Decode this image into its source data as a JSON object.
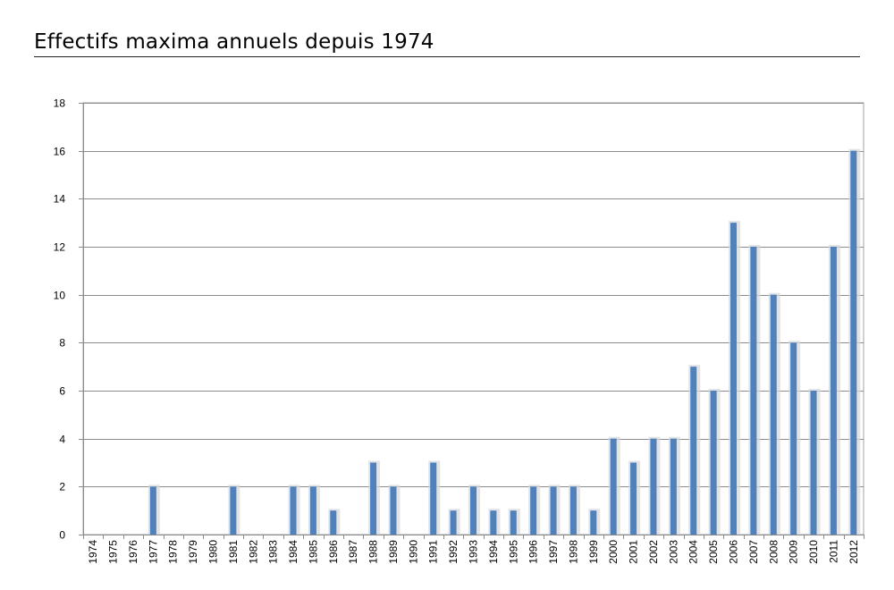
{
  "title": "Effectifs maxima annuels depuis 1974",
  "colors": {
    "bar": "#4F81BD",
    "bar_shadow": "#D4D7DC",
    "grid": "#8C8C8C",
    "axis": "#8C8C8C",
    "plot_border": "#A6A6A6"
  },
  "chart_data": {
    "type": "bar",
    "title": "",
    "xlabel": "",
    "ylabel": "",
    "ylim": [
      0,
      18
    ],
    "yticks": [
      0,
      2,
      4,
      6,
      8,
      10,
      12,
      14,
      16,
      18
    ],
    "grid": true,
    "legend": "none",
    "categories": [
      "1974",
      "1975",
      "1976",
      "1977",
      "1978",
      "1979",
      "1980",
      "1981",
      "1982",
      "1983",
      "1984",
      "1985",
      "1986",
      "1987",
      "1988",
      "1989",
      "1990",
      "1991",
      "1992",
      "1993",
      "1994",
      "1995",
      "1996",
      "1997",
      "1998",
      "1999",
      "2000",
      "2001",
      "2002",
      "2003",
      "2004",
      "2005",
      "2006",
      "2007",
      "2008",
      "2009",
      "2010",
      "2011",
      "2012"
    ],
    "values": [
      0,
      0,
      0,
      2,
      0,
      0,
      0,
      2,
      0,
      0,
      2,
      2,
      1,
      0,
      3,
      2,
      0,
      3,
      1,
      2,
      1,
      1,
      2,
      2,
      2,
      1,
      4,
      3,
      4,
      4,
      7,
      6,
      13,
      12,
      10,
      8,
      6,
      12,
      16
    ]
  }
}
